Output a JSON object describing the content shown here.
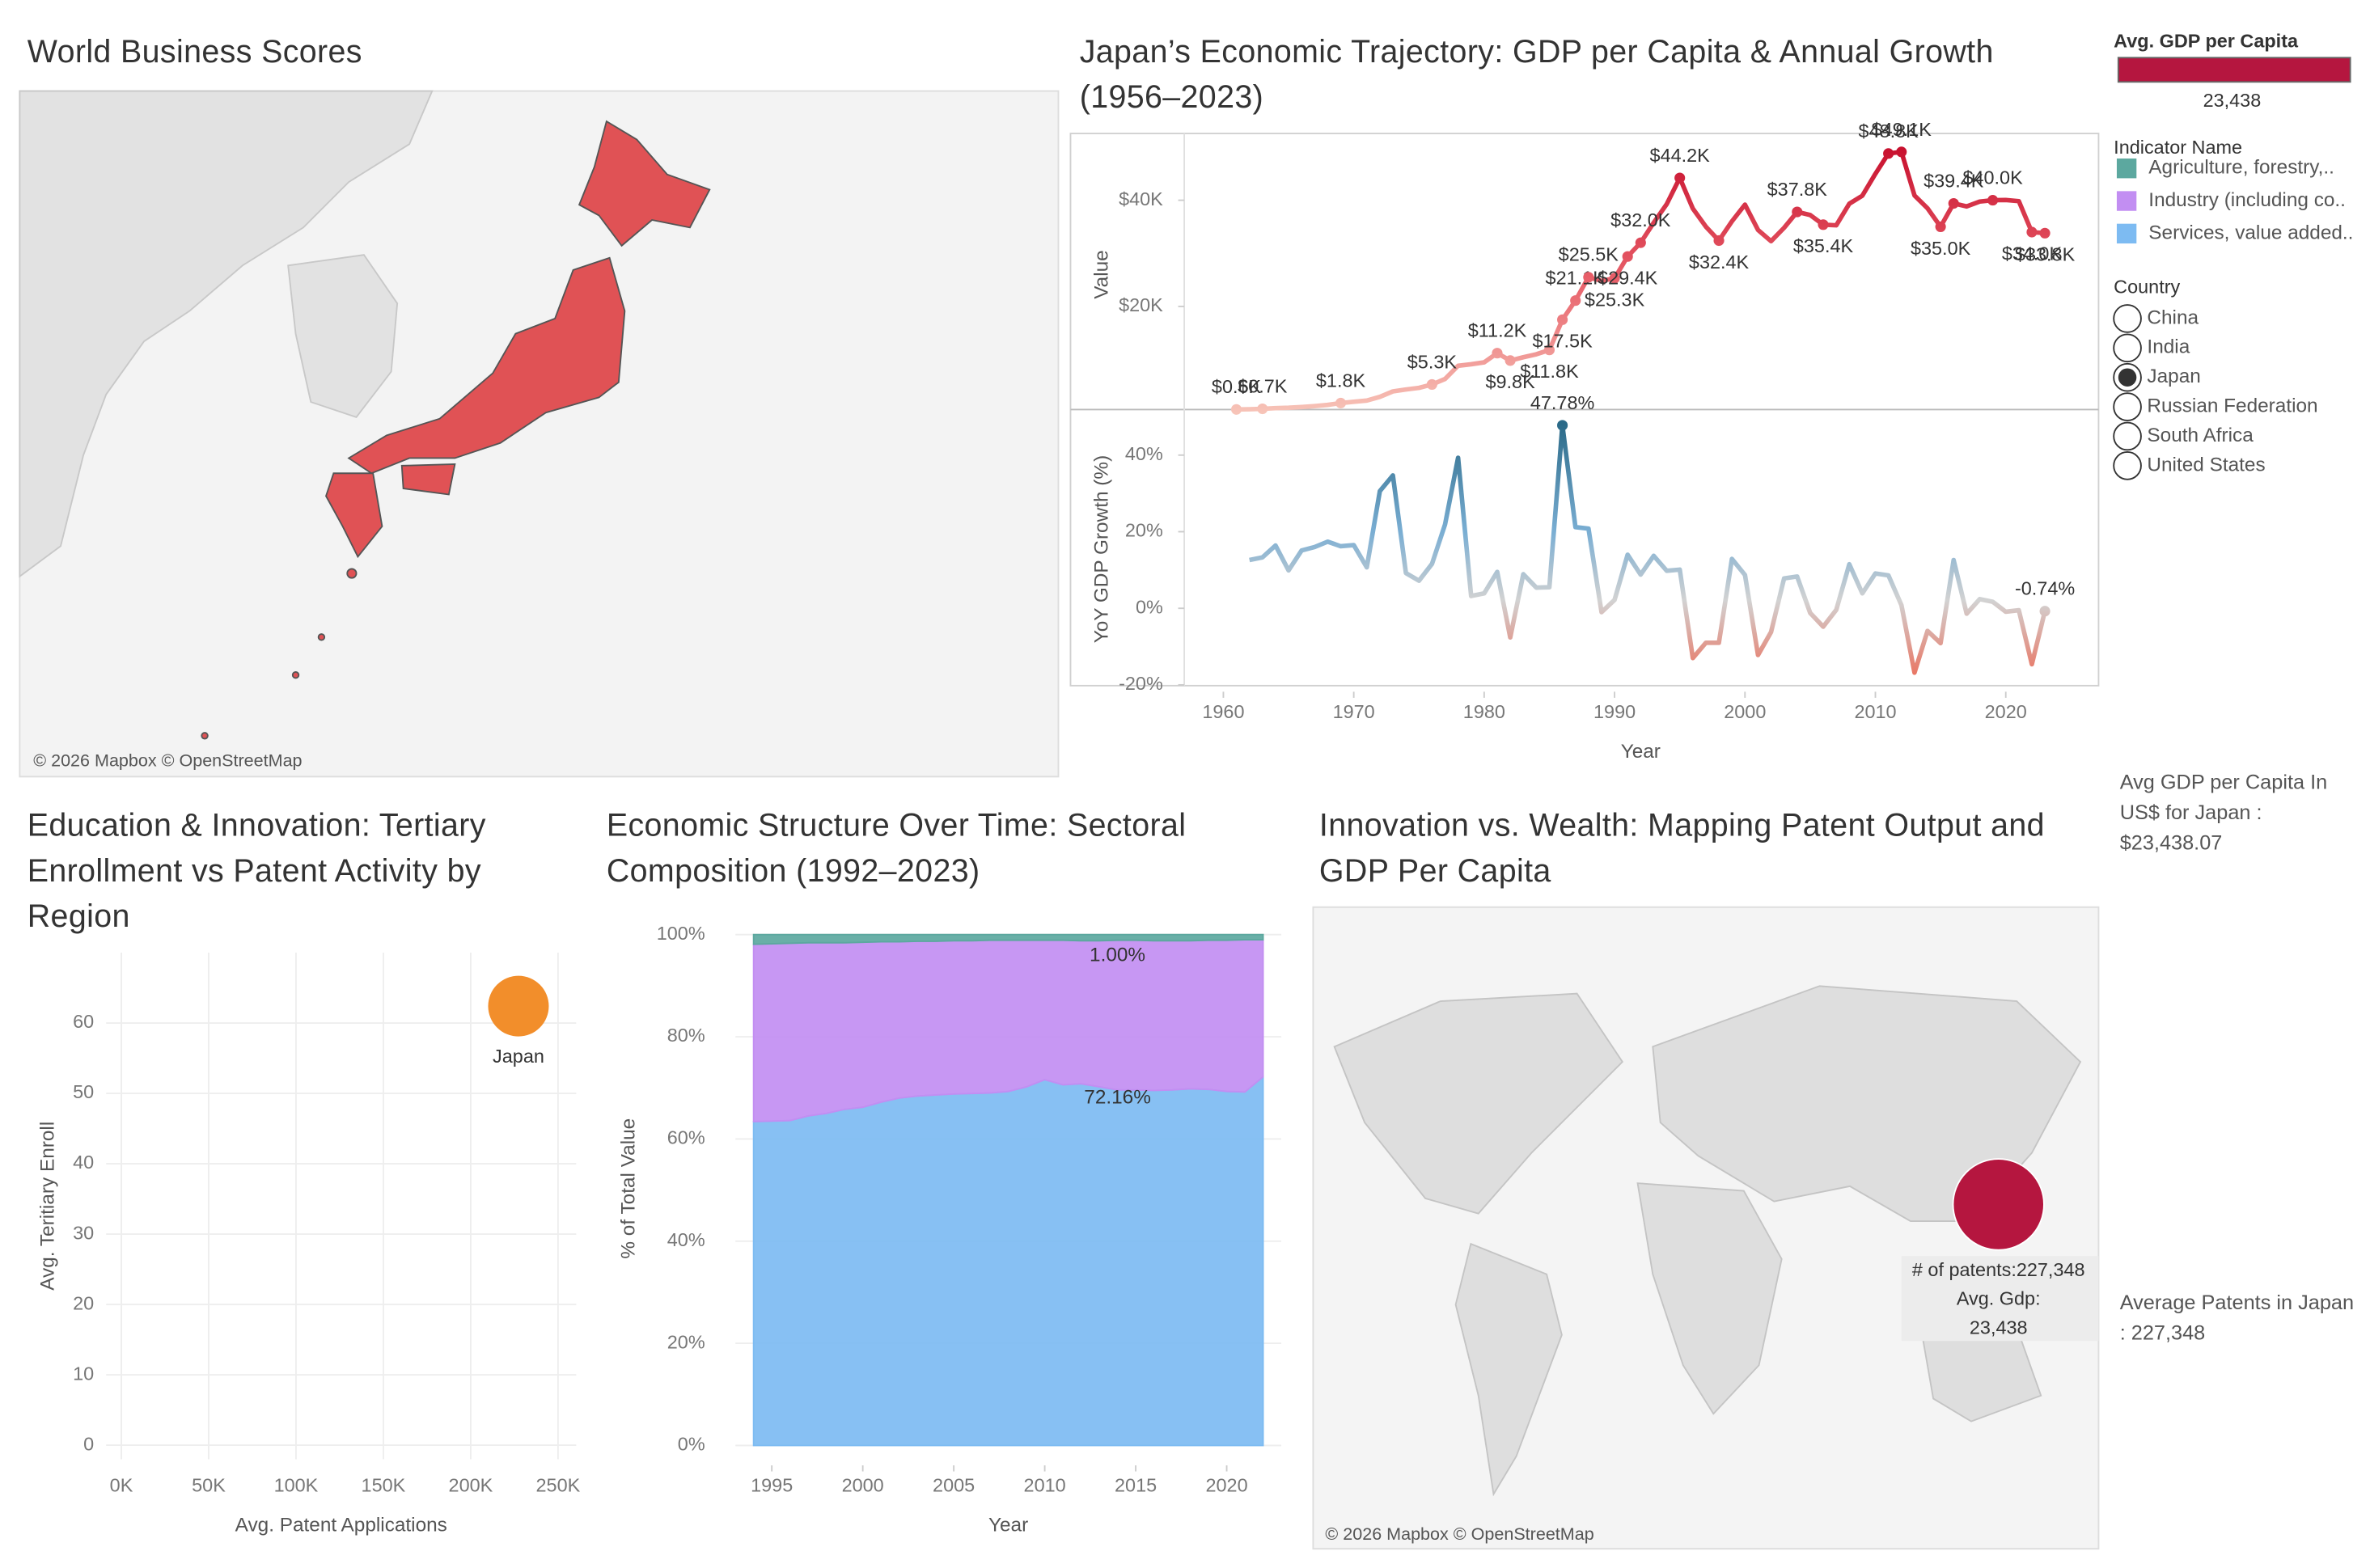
{
  "dashboard_title": "World Business Scores",
  "japan_map": {
    "attribution": "© 2026 Mapbox © OpenStreetMap",
    "color": "#e05255"
  },
  "legends": {
    "gdp": {
      "title": "Avg. GDP per Capita",
      "value": "23,438",
      "color": "#b5163f"
    },
    "indicator": {
      "title": "Indicator Name"
    },
    "country": {
      "title": "Country",
      "options": [
        "China",
        "India",
        "Japan",
        "Russian Federation",
        "South Africa",
        "United States"
      ],
      "selected": 2
    }
  },
  "world_map": {
    "title": "Innovation vs. Wealth: Mapping Patent Output and GDP Per Capita",
    "attribution": "© 2026 Mapbox © OpenStreetMap",
    "bubble": {
      "patents": 227348,
      "color": "#b5163f",
      "tooltip": [
        "# of patents:227,348",
        "Avg. Gdp:",
        "23,438"
      ]
    }
  },
  "side_notes": [
    "Avg GDP per Capita In US$ for Japan : $23,438.07",
    "Average Patents in Japan : 227,348"
  ],
  "chart_data": [
    {
      "type": "line",
      "title": "Japan’s Economic Trajectory: GDP per Capita & Annual Growth (1956–2023)",
      "ylabel": "Value",
      "x": [
        1961,
        1962,
        1963,
        1964,
        1965,
        1966,
        1967,
        1968,
        1969,
        1970,
        1971,
        1972,
        1973,
        1974,
        1975,
        1976,
        1977,
        1978,
        1979,
        1980,
        1981,
        1982,
        1983,
        1984,
        1985,
        1986,
        1987,
        1988,
        1989,
        1990,
        1991,
        1992,
        1993,
        1994,
        1995,
        1996,
        1997,
        1998,
        1999,
        2000,
        2001,
        2002,
        2003,
        2004,
        2005,
        2006,
        2007,
        2008,
        2009,
        2010,
        2011,
        2012,
        2013,
        2014,
        2015,
        2016,
        2017,
        2018,
        2019,
        2020,
        2021,
        2022,
        2023
      ],
      "values": [
        600,
        634,
        718,
        836,
        919,
        1058,
        1228,
        1450,
        1800,
        2037,
        2272,
        2967,
        3997,
        4354,
        4659,
        5300,
        6335,
        8821,
        9105,
        9463,
        11200,
        9800,
        10425,
        10984,
        11800,
        17500,
        21100,
        25500,
        24813,
        25300,
        29400,
        32000,
        35766,
        39269,
        44200,
        38437,
        35022,
        32400,
        36027,
        39169,
        34406,
        32289,
        34808,
        37800,
        37218,
        35400,
        35275,
        39339,
        40855,
        44968,
        48800,
        49100,
        40898,
        38475,
        35000,
        39400,
        38834,
        39751,
        40000,
        40040,
        39827,
        34000,
        33800
      ],
      "value_labels": [
        "$0.6K",
        null,
        "$0.7K",
        null,
        null,
        null,
        null,
        null,
        "$1.8K",
        null,
        null,
        null,
        null,
        null,
        null,
        "$5.3K",
        null,
        null,
        null,
        null,
        "$11.2K",
        "$9.8K",
        null,
        null,
        "$11.8K",
        "$17.5K",
        "$21.1K",
        "$25.5K",
        null,
        "$25.3K",
        "$29.4K",
        "$32.0K",
        null,
        null,
        "$44.2K",
        null,
        null,
        "$32.4K",
        null,
        null,
        null,
        null,
        null,
        "$37.8K",
        null,
        "$35.4K",
        null,
        null,
        null,
        null,
        "$48.8K",
        "$49.1K",
        null,
        null,
        "$35.0K",
        "$39.4K",
        null,
        null,
        "$40.0K",
        null,
        null,
        "$34.0K",
        "$33.8K"
      ],
      "xlim": [
        1957,
        2027
      ],
      "ylim": [
        0,
        52000
      ],
      "yticks": [
        {
          "value": 20000,
          "label": "$20K"
        },
        {
          "value": 40000,
          "label": "$40K"
        }
      ],
      "gradient": [
        {
          "value": 0,
          "color": "#f7c4b8"
        },
        {
          "value": 25000,
          "color": "#e8606a"
        },
        {
          "value": 50000,
          "color": "#c8102e"
        }
      ]
    },
    {
      "type": "line",
      "ylabel": "YoY GDP Growth (%)",
      "xlabel": "Year",
      "x": [
        1962,
        1963,
        1964,
        1965,
        1966,
        1967,
        1968,
        1969,
        1970,
        1971,
        1972,
        1973,
        1974,
        1975,
        1976,
        1977,
        1978,
        1979,
        1980,
        1981,
        1982,
        1983,
        1984,
        1985,
        1986,
        1987,
        1988,
        1989,
        1990,
        1991,
        1992,
        1993,
        1994,
        1995,
        1996,
        1997,
        1998,
        1999,
        2000,
        2001,
        2002,
        2003,
        2004,
        2005,
        2006,
        2007,
        2008,
        2009,
        2010,
        2011,
        2012,
        2013,
        2014,
        2015,
        2016,
        2017,
        2018,
        2019,
        2020,
        2021,
        2022,
        2023
      ],
      "values": [
        12.6,
        13.3,
        16.4,
        9.9,
        15.1,
        16,
        17.4,
        16.2,
        16.5,
        10.7,
        30.6,
        34.7,
        9.2,
        7.2,
        11.6,
        21.9,
        39.3,
        3.2,
        3.9,
        9.5,
        -7.6,
        8.9,
        5.4,
        5.5,
        47.78,
        21.2,
        20.8,
        -1,
        2.2,
        14,
        8.8,
        13.7,
        9.8,
        10.1,
        -13,
        -9,
        -9,
        12.9,
        8.7,
        -12.2,
        -6.2,
        7.8,
        8.3,
        -1.2,
        -4.8,
        -0.4,
        11.5,
        3.9,
        9.1,
        8.6,
        0.8,
        -16.8,
        -5.9,
        -9.1,
        12.6,
        -1.4,
        2.4,
        1.7,
        -0.9,
        -0.5,
        -14.6,
        -0.74
      ],
      "value_labels": [
        null,
        null,
        null,
        null,
        null,
        null,
        null,
        null,
        null,
        null,
        null,
        null,
        null,
        null,
        null,
        null,
        null,
        null,
        null,
        null,
        null,
        null,
        null,
        null,
        "47.78%",
        null,
        null,
        null,
        null,
        null,
        null,
        null,
        null,
        null,
        null,
        null,
        null,
        null,
        null,
        null,
        null,
        null,
        null,
        null,
        null,
        null,
        null,
        null,
        null,
        null,
        null,
        null,
        null,
        null,
        null,
        null,
        null,
        null,
        null,
        null,
        null,
        "-0.74%"
      ],
      "xlim": [
        1957,
        2027
      ],
      "ylim": [
        -20.2,
        51.1
      ],
      "xticks": [
        1960,
        1970,
        1980,
        1990,
        2000,
        2010,
        2020
      ],
      "yticks": [
        {
          "value": -20,
          "label": "-20%"
        },
        {
          "value": 0,
          "label": "0%"
        },
        {
          "value": 20,
          "label": "20%"
        },
        {
          "value": 40,
          "label": "40%"
        }
      ],
      "gradient": [
        {
          "value": -20,
          "color": "#ec6a55"
        },
        {
          "value": 2,
          "color": "#d2d2d2"
        },
        {
          "value": 20,
          "color": "#7aaed3"
        },
        {
          "value": 48,
          "color": "#2b6a88"
        }
      ]
    },
    {
      "type": "scatter",
      "title": "Education & Innovation: Tertiary Enrollment vs Patent Activity by Region",
      "xlabel": "Avg. Patent Applications",
      "ylabel": "Avg. Teritiary Enroll",
      "x": [
        227348
      ],
      "values": [
        62.4
      ],
      "labels": [
        "Japan"
      ],
      "color": "#f28e2b",
      "xlim": [
        -8700,
        260400
      ],
      "ylim": [
        -2,
        70
      ],
      "xticks": [
        {
          "value": 0,
          "label": "0K"
        },
        {
          "value": 50000,
          "label": "50K"
        },
        {
          "value": 100000,
          "label": "100K"
        },
        {
          "value": 150000,
          "label": "150K"
        },
        {
          "value": 200000,
          "label": "200K"
        },
        {
          "value": 250000,
          "label": "250K"
        }
      ],
      "yticks": [
        0,
        10,
        20,
        30,
        40,
        50,
        60
      ],
      "grid": true
    },
    {
      "type": "area",
      "title": "Economic Structure Over Time: Sectoral Composition (1992–2023)",
      "xlabel": "Year",
      "ylabel": "% of Total Value",
      "stacked": true,
      "x": [
        1994,
        1995,
        1996,
        1997,
        1998,
        1999,
        2000,
        2001,
        2002,
        2003,
        2004,
        2005,
        2006,
        2007,
        2008,
        2009,
        2010,
        2011,
        2012,
        2013,
        2014,
        2015,
        2016,
        2017,
        2018,
        2019,
        2020,
        2021,
        2022
      ],
      "series": [
        {
          "name": "Agriculture, forestry,..",
          "color": "#5ca89f",
          "values": [
            1.9,
            1.8,
            1.7,
            1.6,
            1.6,
            1.6,
            1.5,
            1.4,
            1.4,
            1.3,
            1.3,
            1.2,
            1.2,
            1.1,
            1.1,
            1.1,
            1.1,
            1.1,
            1.2,
            1.2,
            1.1,
            1.1,
            1.2,
            1.2,
            1.2,
            1.1,
            1.1,
            1.0,
            1.0
          ],
          "value_labels": [
            null,
            null,
            null,
            null,
            null,
            null,
            null,
            null,
            null,
            null,
            null,
            null,
            null,
            null,
            null,
            null,
            null,
            null,
            null,
            null,
            null,
            null,
            null,
            null,
            null,
            null,
            null,
            null,
            "1.00%"
          ]
        },
        {
          "name": "Industry (including co..",
          "color": "#c28ef2",
          "values": [
            34.7,
            34.7,
            34.7,
            33.9,
            33.4,
            32.6,
            32.3,
            31.4,
            30.6,
            30.3,
            30.1,
            30.0,
            29.9,
            29.9,
            29.6,
            28.7,
            27.3,
            28.3,
            28.0,
            28.6,
            29.3,
            29.3,
            29.3,
            29.2,
            29.0,
            29.2,
            29.6,
            29.8,
            26.84
          ]
        },
        {
          "name": "Services, value added..",
          "color": "#7dbbf2",
          "values": [
            63.4,
            63.5,
            63.6,
            64.5,
            65,
            65.8,
            66.2,
            67.2,
            68,
            68.4,
            68.6,
            68.8,
            68.9,
            69,
            69.3,
            70.2,
            71.6,
            70.6,
            70.8,
            70.2,
            69.6,
            69.6,
            69.5,
            69.6,
            69.8,
            69.7,
            69.3,
            69.2,
            72.16
          ],
          "value_labels": [
            null,
            null,
            null,
            null,
            null,
            null,
            null,
            null,
            null,
            null,
            null,
            null,
            null,
            null,
            null,
            null,
            null,
            null,
            null,
            null,
            null,
            null,
            null,
            null,
            null,
            null,
            null,
            null,
            "72.16%"
          ]
        }
      ],
      "xlim": [
        1993,
        2023
      ],
      "ylim": [
        -2.7,
        103.3
      ],
      "xticks": [
        1995,
        2000,
        2005,
        2010,
        2015,
        2020
      ],
      "yticks": [
        {
          "value": 0,
          "label": "0%"
        },
        {
          "value": 20,
          "label": "20%"
        },
        {
          "value": 40,
          "label": "40%"
        },
        {
          "value": 60,
          "label": "60%"
        },
        {
          "value": 80,
          "label": "80%"
        },
        {
          "value": 100,
          "label": "100%"
        }
      ],
      "grid": true
    }
  ]
}
